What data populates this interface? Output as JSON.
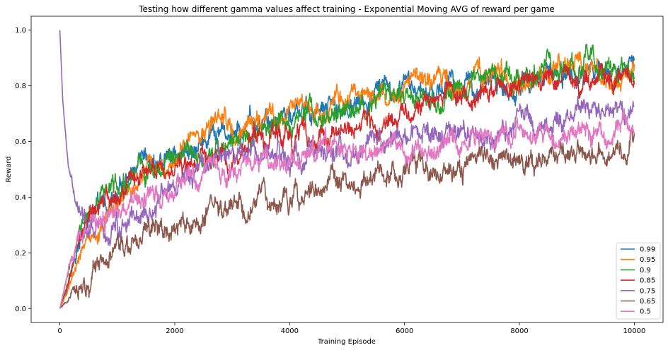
{
  "chart_data": {
    "type": "line",
    "title": "Testing how different gamma values affect training - Exponential Moving AVG of reward per game",
    "xlabel": "Training Episode",
    "ylabel": "Reward",
    "xlim": [
      -500,
      10500
    ],
    "ylim": [
      -0.05,
      1.05
    ],
    "xticks": [
      0,
      2000,
      4000,
      6000,
      8000,
      10000
    ],
    "yticks": [
      0.0,
      0.2,
      0.4,
      0.6,
      0.8,
      1.0
    ],
    "ytick_labels": [
      "0.0",
      "0.2",
      "0.4",
      "0.6",
      "0.8",
      "1.0"
    ],
    "grid": false,
    "legend_position": "lower-right",
    "noise_band": 0.035,
    "series": [
      {
        "name": "0.99",
        "color": "#1f77b4",
        "x": [
          0,
          300,
          500,
          1000,
          1500,
          2000,
          2500,
          3000,
          3500,
          4000,
          4500,
          5000,
          5500,
          6000,
          6500,
          7000,
          7500,
          8000,
          8500,
          9000,
          9500,
          10000
        ],
        "values": [
          0.0,
          0.2,
          0.3,
          0.4,
          0.48,
          0.55,
          0.6,
          0.62,
          0.66,
          0.7,
          0.69,
          0.72,
          0.74,
          0.78,
          0.8,
          0.8,
          0.8,
          0.78,
          0.84,
          0.85,
          0.86,
          0.85
        ]
      },
      {
        "name": "0.95",
        "color": "#ff7f0e",
        "x": [
          0,
          300,
          500,
          1000,
          1500,
          2000,
          2500,
          3000,
          3500,
          4000,
          4500,
          5000,
          5500,
          6000,
          6500,
          7000,
          7500,
          8000,
          8500,
          9000,
          9500,
          10000
        ],
        "values": [
          0.0,
          0.15,
          0.22,
          0.38,
          0.5,
          0.55,
          0.62,
          0.66,
          0.68,
          0.7,
          0.71,
          0.76,
          0.76,
          0.78,
          0.82,
          0.8,
          0.85,
          0.8,
          0.83,
          0.87,
          0.84,
          0.85
        ]
      },
      {
        "name": "0.9",
        "color": "#2ca02c",
        "x": [
          0,
          300,
          500,
          1000,
          1500,
          2000,
          2500,
          3000,
          3500,
          4000,
          4500,
          5000,
          5500,
          6000,
          6500,
          7000,
          7500,
          8000,
          8500,
          9000,
          9500,
          10000
        ],
        "values": [
          0.0,
          0.25,
          0.33,
          0.45,
          0.5,
          0.52,
          0.55,
          0.56,
          0.64,
          0.68,
          0.72,
          0.73,
          0.74,
          0.75,
          0.78,
          0.8,
          0.84,
          0.83,
          0.86,
          0.87,
          0.86,
          0.84
        ]
      },
      {
        "name": "0.85",
        "color": "#d62728",
        "x": [
          0,
          300,
          500,
          1000,
          1500,
          2000,
          2500,
          3000,
          3500,
          4000,
          4500,
          5000,
          5500,
          6000,
          6500,
          7000,
          7500,
          8000,
          8500,
          9000,
          9500,
          10000
        ],
        "values": [
          0.0,
          0.2,
          0.3,
          0.43,
          0.48,
          0.5,
          0.52,
          0.55,
          0.6,
          0.61,
          0.65,
          0.65,
          0.67,
          0.68,
          0.74,
          0.78,
          0.8,
          0.82,
          0.82,
          0.83,
          0.84,
          0.82
        ]
      },
      {
        "name": "0.75",
        "color": "#9467bd",
        "x": [
          0,
          50,
          150,
          300,
          500,
          1000,
          1500,
          2000,
          2500,
          3000,
          3500,
          4000,
          4500,
          5000,
          5500,
          6000,
          6500,
          7000,
          7500,
          8000,
          8500,
          9000,
          9500,
          10000
        ],
        "values": [
          1.0,
          0.75,
          0.5,
          0.35,
          0.27,
          0.3,
          0.38,
          0.45,
          0.5,
          0.55,
          0.57,
          0.52,
          0.57,
          0.55,
          0.6,
          0.6,
          0.62,
          0.64,
          0.63,
          0.66,
          0.68,
          0.7,
          0.72,
          0.72
        ]
      },
      {
        "name": "0.65",
        "color": "#8c564b",
        "x": [
          0,
          300,
          500,
          1000,
          1500,
          2000,
          2500,
          3000,
          3500,
          4000,
          4500,
          5000,
          5500,
          6000,
          6500,
          7000,
          7500,
          8000,
          8500,
          9000,
          9500,
          10000
        ],
        "values": [
          0.0,
          0.08,
          0.12,
          0.2,
          0.26,
          0.3,
          0.33,
          0.36,
          0.38,
          0.4,
          0.42,
          0.46,
          0.48,
          0.5,
          0.5,
          0.52,
          0.53,
          0.54,
          0.55,
          0.56,
          0.57,
          0.58
        ]
      },
      {
        "name": "0.5",
        "color": "#e377c2",
        "x": [
          0,
          300,
          500,
          1000,
          1500,
          2000,
          2500,
          3000,
          3500,
          4000,
          4500,
          5000,
          5500,
          6000,
          6500,
          7000,
          7500,
          8000,
          8500,
          9000,
          9500,
          10000
        ],
        "values": [
          0.0,
          0.25,
          0.3,
          0.33,
          0.4,
          0.45,
          0.47,
          0.5,
          0.53,
          0.52,
          0.55,
          0.57,
          0.58,
          0.57,
          0.6,
          0.6,
          0.62,
          0.61,
          0.62,
          0.63,
          0.64,
          0.66
        ]
      }
    ]
  }
}
